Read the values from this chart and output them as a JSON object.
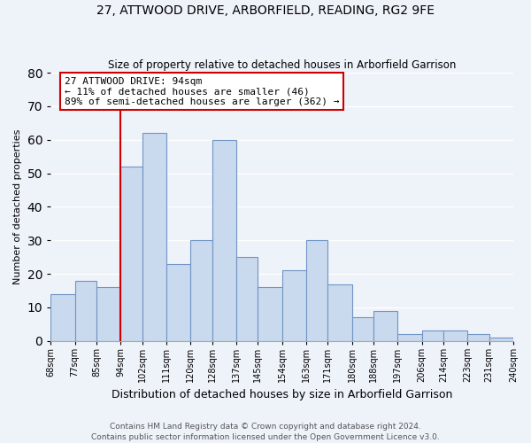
{
  "title": "27, ATTWOOD DRIVE, ARBORFIELD, READING, RG2 9FE",
  "subtitle": "Size of property relative to detached houses in Arborfield Garrison",
  "xlabel": "Distribution of detached houses by size in Arborfield Garrison",
  "ylabel": "Number of detached properties",
  "bins": [
    68,
    77,
    85,
    94,
    102,
    111,
    120,
    128,
    137,
    145,
    154,
    163,
    171,
    180,
    188,
    197,
    206,
    214,
    223,
    231,
    240
  ],
  "counts": [
    14,
    18,
    16,
    52,
    62,
    23,
    30,
    60,
    25,
    16,
    21,
    30,
    17,
    7,
    9,
    2,
    3,
    3,
    2,
    1
  ],
  "bar_color": "#c9d9ee",
  "bar_edge_color": "#7094c4",
  "vline_x": 94,
  "vline_color": "#cc0000",
  "annotation_title": "27 ATTWOOD DRIVE: 94sqm",
  "annotation_line1": "← 11% of detached houses are smaller (46)",
  "annotation_line2": "89% of semi-detached houses are larger (362) →",
  "annotation_box_facecolor": "#ffffff",
  "annotation_box_edgecolor": "#cc0000",
  "ylim": [
    0,
    80
  ],
  "yticks": [
    0,
    10,
    20,
    30,
    40,
    50,
    60,
    70,
    80
  ],
  "tick_labels": [
    "68sqm",
    "77sqm",
    "85sqm",
    "94sqm",
    "102sqm",
    "111sqm",
    "120sqm",
    "128sqm",
    "137sqm",
    "145sqm",
    "154sqm",
    "163sqm",
    "171sqm",
    "180sqm",
    "188sqm",
    "197sqm",
    "206sqm",
    "214sqm",
    "223sqm",
    "231sqm",
    "240sqm"
  ],
  "footer_line1": "Contains HM Land Registry data © Crown copyright and database right 2024.",
  "footer_line2": "Contains public sector information licensed under the Open Government Licence v3.0.",
  "background_color": "#eef2f9",
  "grid_color": "#ffffff",
  "title_fontsize": 10,
  "subtitle_fontsize": 8.5,
  "ylabel_fontsize": 8,
  "xlabel_fontsize": 9,
  "tick_fontsize": 7,
  "annotation_fontsize": 8,
  "footer_fontsize": 6.5
}
